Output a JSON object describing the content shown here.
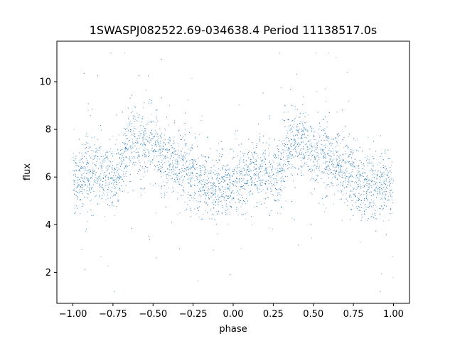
{
  "chart_data": {
    "type": "scatter",
    "title": "1SWASPJ082522.69-034638.4 Period 11138517.0s",
    "xlabel": "phase",
    "ylabel": "flux",
    "xlim": [
      -1.1,
      1.1
    ],
    "ylim": [
      0.7,
      11.7
    ],
    "xticks": [
      -1.0,
      -0.75,
      -0.5,
      -0.25,
      0.0,
      0.25,
      0.5,
      0.75,
      1.0
    ],
    "xtick_labels": [
      "−1.00",
      "−0.75",
      "−0.50",
      "−0.25",
      "0.00",
      "0.25",
      "0.50",
      "0.75",
      "1.00"
    ],
    "yticks": [
      2,
      4,
      6,
      8,
      10
    ],
    "ytick_labels": [
      "2",
      "4",
      "6",
      "8",
      "10"
    ],
    "grid": false,
    "legend": "none",
    "marker_color": "#1f77b4",
    "series": [
      {
        "phase_profile": [
          [
            -1.0,
            5.7
          ],
          [
            -0.95,
            5.9
          ],
          [
            -0.9,
            6.1
          ],
          [
            -0.85,
            6.2
          ],
          [
            -0.8,
            6.0
          ],
          [
            -0.75,
            5.9
          ],
          [
            -0.7,
            6.3
          ],
          [
            -0.65,
            7.4
          ],
          [
            -0.6,
            7.5
          ],
          [
            -0.55,
            7.3
          ],
          [
            -0.5,
            7.1
          ],
          [
            -0.45,
            6.9
          ],
          [
            -0.4,
            6.7
          ],
          [
            -0.35,
            6.5
          ],
          [
            -0.3,
            6.3
          ],
          [
            -0.25,
            5.9
          ],
          [
            -0.2,
            5.7
          ],
          [
            -0.15,
            5.6
          ],
          [
            -0.1,
            5.7
          ],
          [
            -0.05,
            5.6
          ],
          [
            0.0,
            5.7
          ],
          [
            0.05,
            5.9
          ],
          [
            0.1,
            6.1
          ],
          [
            0.15,
            6.2
          ],
          [
            0.2,
            6.0
          ],
          [
            0.25,
            5.9
          ],
          [
            0.3,
            6.3
          ],
          [
            0.35,
            7.4
          ],
          [
            0.4,
            7.5
          ],
          [
            0.45,
            7.3
          ],
          [
            0.5,
            7.1
          ],
          [
            0.55,
            6.9
          ],
          [
            0.6,
            6.7
          ],
          [
            0.65,
            6.5
          ],
          [
            0.7,
            6.3
          ],
          [
            0.75,
            5.9
          ],
          [
            0.8,
            5.7
          ],
          [
            0.85,
            5.6
          ],
          [
            0.9,
            5.7
          ],
          [
            0.95,
            5.6
          ],
          [
            1.0,
            5.7
          ]
        ]
      }
    ]
  }
}
